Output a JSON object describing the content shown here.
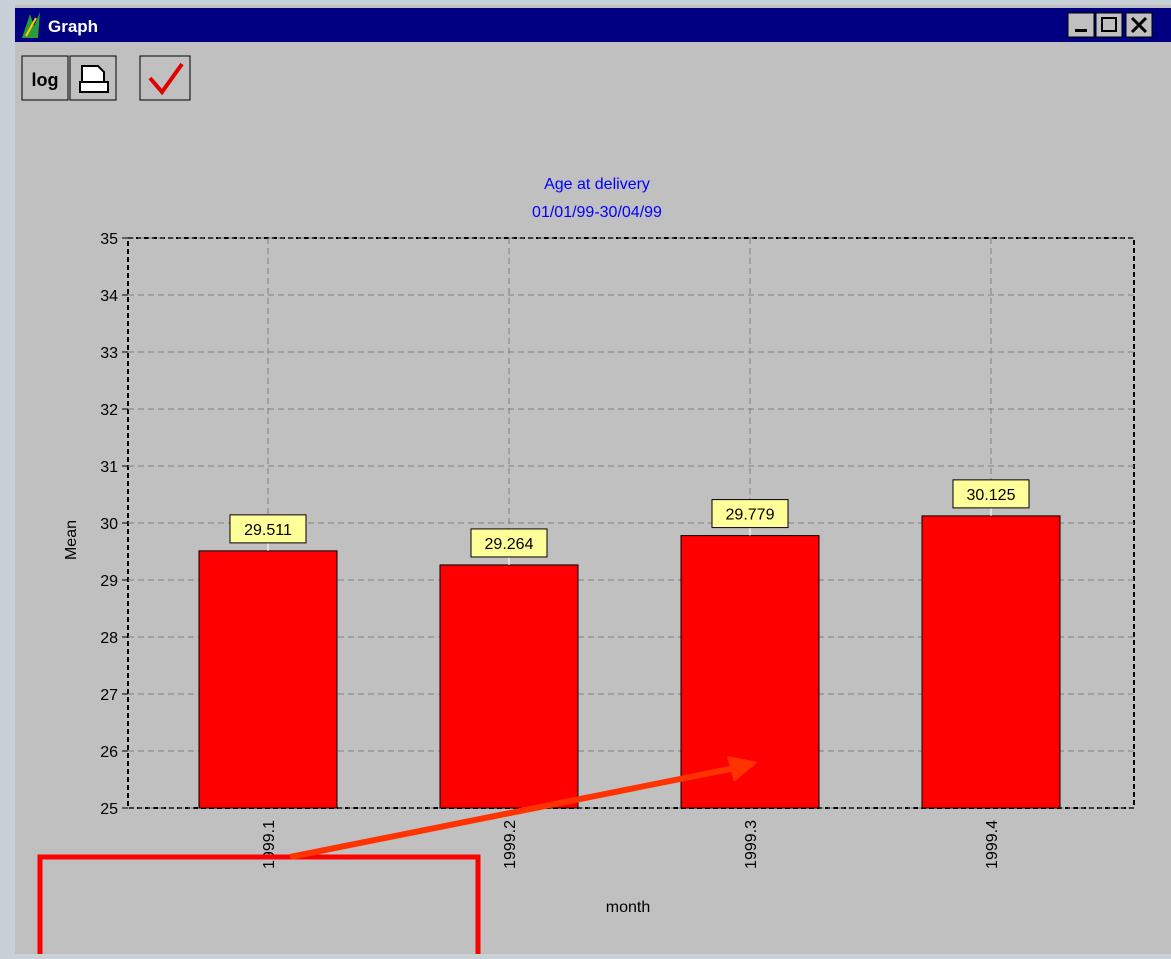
{
  "window": {
    "title": "Graph",
    "log_button": "log"
  },
  "chart_data": {
    "type": "bar",
    "title": "Age at delivery",
    "subtitle": "01/01/99-30/04/99",
    "x_label": "month",
    "y_label": "Mean",
    "categories": [
      "1999.1",
      "1999.2",
      "1999.3",
      "1999.4"
    ],
    "values": [
      29.511,
      29.264,
      29.779,
      30.125
    ],
    "color": "#ff0000",
    "ylim": [
      25,
      35
    ],
    "yticks": [
      25,
      26,
      27,
      28,
      29,
      30,
      31,
      32,
      33,
      34,
      35
    ],
    "grid": true
  }
}
